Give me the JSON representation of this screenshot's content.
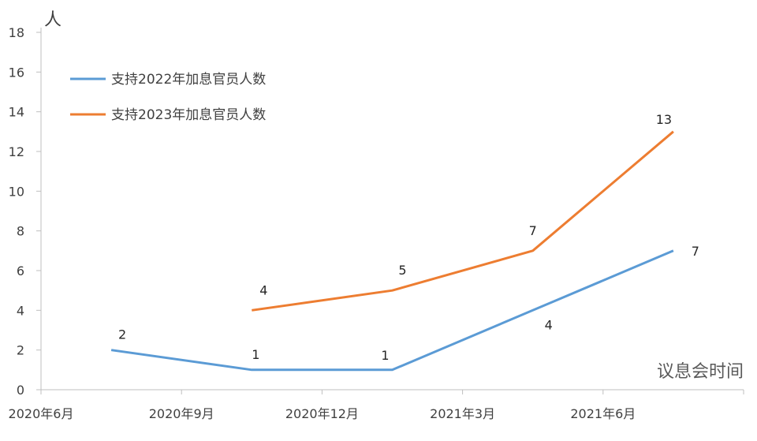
{
  "chart_data": {
    "type": "line",
    "ylabel": "人",
    "xlabel": "议息会时间",
    "ylim": [
      0,
      18
    ],
    "yticks": [
      0,
      2,
      4,
      6,
      8,
      10,
      12,
      14,
      16,
      18
    ],
    "categories": [
      "2020年6月",
      "2020年9月",
      "2020年12月",
      "2021年3月",
      "2021年6月"
    ],
    "legend_position": "top-left",
    "grid": false,
    "series": [
      {
        "name": "支持2022年加息官员人数",
        "color": "#5b9bd5",
        "values": [
          2,
          1,
          1,
          4,
          7
        ]
      },
      {
        "name": "支持2023年加息官员人数",
        "color": "#ed7d31",
        "values": [
          null,
          4,
          5,
          7,
          13
        ]
      }
    ]
  }
}
